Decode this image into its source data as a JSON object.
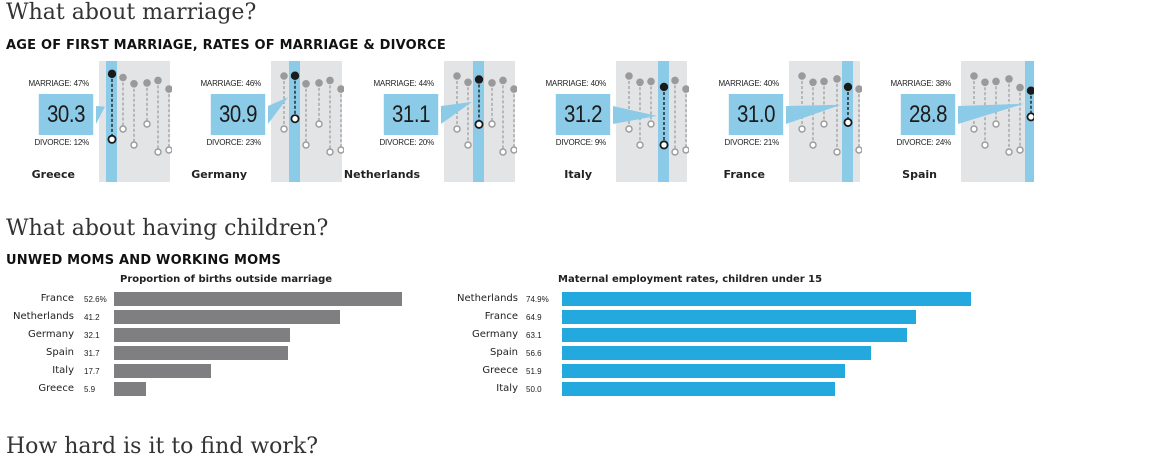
{
  "headings": {
    "marriage": "What about marriage?",
    "children": "What about having children?",
    "work": "How hard is it to find work?"
  },
  "colors": {
    "highlight_blue": "#8ccbe8",
    "panel_gray": "#e3e4e6",
    "bar_gray": "#7f7f81",
    "bar_blue": "#23a9de",
    "dot_gray": "#9a9a9a",
    "dot_black": "#1a1a1a"
  },
  "chart_data": [
    {
      "type": "dot-range",
      "title": "AGE OF FIRST MARRIAGE, RATES OF MARRIAGE & DIVORCE",
      "countries": [
        {
          "name": "Greece",
          "age": "30.3",
          "marriage": "MARRIAGE: 47%",
          "divorce": "DIVORCE: 12%",
          "marriage_rate": 47,
          "divorce_rate": 12
        },
        {
          "name": "Germany",
          "age": "30.9",
          "marriage": "MARRIAGE: 46%",
          "divorce": "DIVORCE: 23%",
          "marriage_rate": 46,
          "divorce_rate": 23
        },
        {
          "name": "Netherlands",
          "age": "31.1",
          "marriage": "MARRIAGE: 44%",
          "divorce": "DIVORCE: 20%",
          "marriage_rate": 44,
          "divorce_rate": 20
        },
        {
          "name": "Italy",
          "age": "31.2",
          "marriage": "MARRIAGE: 40%",
          "divorce": "DIVORCE:  9%",
          "marriage_rate": 40,
          "divorce_rate": 9
        },
        {
          "name": "France",
          "age": "31.0",
          "marriage": "MARRIAGE: 40%",
          "divorce": "DIVORCE: 21%",
          "marriage_rate": 40,
          "divorce_rate": 21
        },
        {
          "name": "Spain",
          "age": "28.8",
          "marriage": "MARRIAGE: 38%",
          "divorce": "DIVORCE: 24%",
          "marriage_rate": 38,
          "divorce_rate": 24
        }
      ]
    },
    {
      "type": "bar",
      "group_title": "UNWED MOMS AND WORKING MOMS",
      "title": "Proportion of births outside marriage",
      "categories": [
        "France",
        "Netherlands",
        "Germany",
        "Spain",
        "Italy",
        "Greece"
      ],
      "values": [
        52.6,
        41.2,
        32.1,
        31.7,
        17.7,
        5.9
      ],
      "value_labels": [
        "52.6%",
        "41.2",
        "32.1",
        "31.7",
        "17.7",
        "5.9"
      ],
      "xlim": [
        0,
        60
      ]
    },
    {
      "type": "bar",
      "title": "Maternal employment rates, children under 15",
      "categories": [
        "Netherlands",
        "France",
        "Germany",
        "Spain",
        "Greece",
        "Italy"
      ],
      "values": [
        74.9,
        64.9,
        63.1,
        56.6,
        51.9,
        50.0
      ],
      "value_labels": [
        "74.9%",
        "64.9",
        "63.1",
        "56.6",
        "51.9",
        "50.0"
      ],
      "xlim": [
        0,
        80
      ]
    }
  ]
}
